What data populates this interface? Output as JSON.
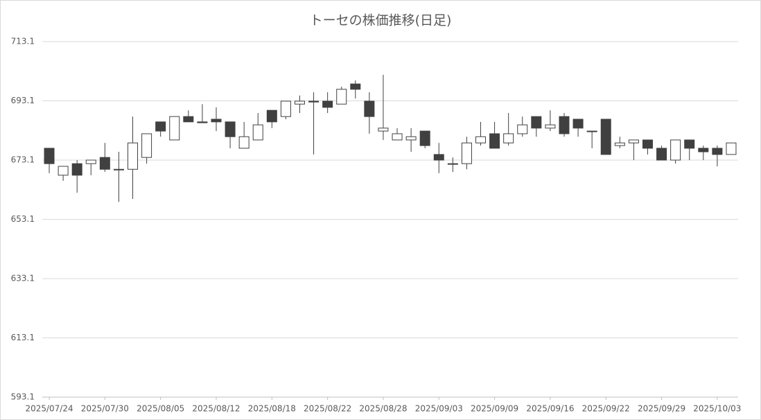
{
  "chart_data": {
    "type": "candlestick",
    "title": "トーセの株価推移(日足)",
    "categories": [
      "2025/07/24",
      null,
      null,
      null,
      "2025/07/30",
      null,
      null,
      null,
      "2025/08/05",
      null,
      null,
      null,
      "2025/08/12",
      null,
      null,
      null,
      "2025/08/18",
      null,
      null,
      null,
      "2025/08/22",
      null,
      null,
      null,
      "2025/08/28",
      null,
      null,
      null,
      "2025/09/03",
      null,
      null,
      null,
      "2025/09/09",
      null,
      null,
      null,
      "2025/09/16",
      null,
      null,
      null,
      "2025/09/22",
      null,
      null,
      null,
      "2025/09/29",
      null,
      null,
      null,
      "2025/10/03",
      null
    ],
    "open": [
      677.1,
      668.0,
      671.9,
      671.9,
      674.0,
      670.0,
      670.0,
      674.0,
      686.0,
      679.9,
      687.8,
      686.0,
      686.9,
      686.0,
      677.1,
      679.9,
      689.9,
      687.8,
      692.0,
      693.0,
      693.0,
      692.0,
      698.8,
      693.0,
      682.9,
      679.9,
      679.9,
      682.9,
      675.0,
      671.9,
      671.9,
      678.9,
      682.0,
      678.9,
      682.0,
      687.8,
      683.9,
      687.8,
      686.9,
      682.9,
      686.9,
      678.0,
      678.9,
      679.9,
      677.1,
      673.1,
      679.9,
      677.1,
      677.1,
      675.0
    ],
    "high": [
      677.1,
      671.0,
      673.1,
      673.1,
      678.9,
      675.9,
      687.8,
      682.0,
      686.0,
      687.8,
      689.9,
      692.0,
      690.9,
      686.0,
      686.0,
      689.0,
      689.9,
      693.0,
      694.9,
      696.0,
      696.0,
      697.9,
      700.0,
      696.0,
      701.9,
      683.9,
      683.9,
      682.9,
      678.9,
      674.0,
      681.0,
      686.0,
      686.0,
      689.0,
      687.8,
      687.8,
      689.9,
      689.0,
      686.9,
      682.9,
      686.9,
      681.0,
      679.9,
      679.9,
      678.0,
      679.9,
      679.9,
      678.0,
      678.0,
      678.9
    ],
    "low": [
      668.7,
      666.1,
      662.1,
      668.0,
      669.1,
      659.0,
      660.0,
      671.9,
      681.0,
      679.9,
      686.0,
      685.7,
      682.9,
      677.1,
      677.1,
      679.9,
      683.9,
      686.9,
      689.0,
      675.0,
      689.0,
      692.0,
      693.9,
      682.0,
      679.9,
      679.9,
      675.9,
      677.1,
      668.7,
      669.1,
      670.0,
      678.0,
      677.1,
      678.0,
      681.0,
      681.0,
      682.9,
      681.0,
      681.0,
      677.1,
      675.0,
      677.1,
      673.1,
      675.0,
      673.1,
      671.9,
      673.1,
      673.1,
      671.0,
      675.0
    ],
    "close": [
      671.9,
      671.0,
      668.0,
      673.1,
      670.0,
      669.8,
      678.9,
      682.0,
      682.9,
      687.8,
      686.0,
      685.7,
      686.0,
      681.0,
      681.0,
      685.0,
      686.0,
      693.0,
      693.0,
      692.7,
      690.9,
      697.0,
      697.0,
      687.8,
      683.9,
      682.0,
      681.0,
      678.0,
      673.1,
      671.7,
      678.9,
      681.0,
      677.1,
      682.0,
      685.0,
      683.9,
      685.0,
      682.0,
      683.9,
      682.7,
      675.0,
      678.9,
      679.9,
      677.1,
      673.1,
      679.9,
      677.1,
      675.9,
      675.0,
      678.9
    ],
    "up_color": "#ffffff",
    "down_color": "#404040",
    "edge_color": "#404040",
    "ylim": [
      593.1,
      713.1
    ],
    "yticks": [
      593.1,
      613.1,
      633.1,
      653.1,
      673.1,
      693.1,
      713.1
    ],
    "grid": true
  }
}
